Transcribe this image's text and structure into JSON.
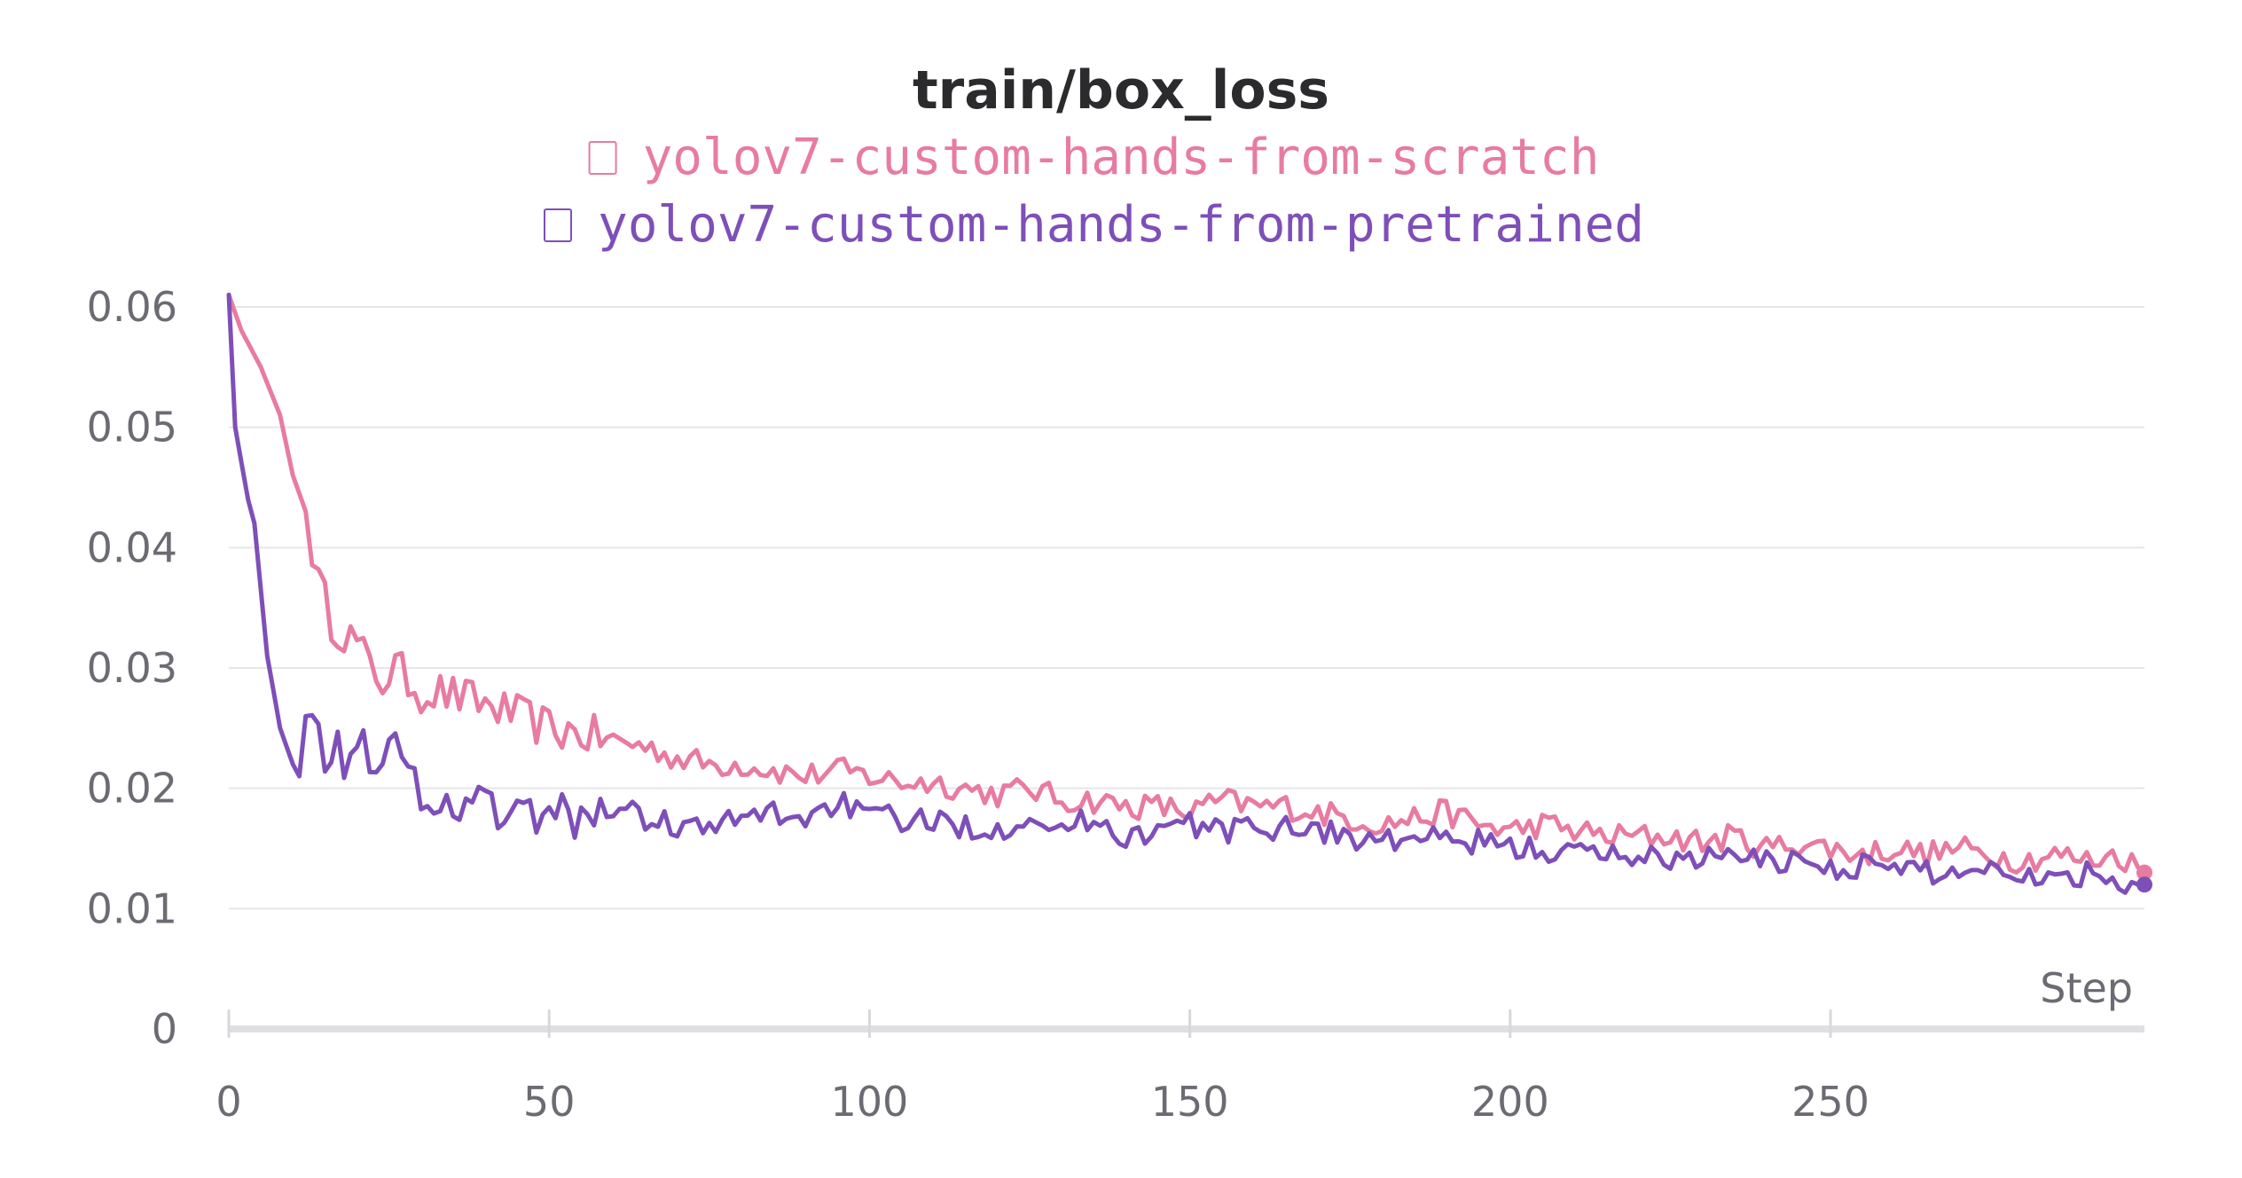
{
  "chart_data": {
    "type": "line",
    "title": "train/box_loss",
    "xlabel": "Step",
    "ylabel": "",
    "xlim": [
      0,
      299
    ],
    "ylim": [
      0,
      0.06
    ],
    "x_ticks": [
      "0",
      "50",
      "100",
      "150",
      "200",
      "250"
    ],
    "y_ticks": [
      "0",
      "0.01",
      "0.02",
      "0.03",
      "0.04",
      "0.05",
      "0.06"
    ],
    "grid": true,
    "legend": "top",
    "series": [
      {
        "name": "yolov7-custom-hands-from-scratch",
        "color": "#e87ba1",
        "x": [
          0,
          2,
          5,
          8,
          10,
          12,
          14,
          16,
          18,
          20,
          22,
          24,
          26,
          28,
          30,
          33,
          36,
          40,
          45,
          50,
          55,
          60,
          65,
          70,
          75,
          80,
          85,
          90,
          95,
          100,
          105,
          110,
          115,
          120,
          125,
          130,
          135,
          140,
          145,
          150,
          155,
          160,
          165,
          170,
          175,
          180,
          185,
          190,
          195,
          200,
          205,
          210,
          215,
          220,
          225,
          230,
          235,
          240,
          245,
          250,
          255,
          260,
          265,
          270,
          275,
          280,
          285,
          290,
          295,
          299
        ],
        "y": [
          0.061,
          0.058,
          0.055,
          0.051,
          0.046,
          0.043,
          0.037,
          0.034,
          0.033,
          0.032,
          0.03,
          0.029,
          0.03,
          0.029,
          0.028,
          0.028,
          0.0275,
          0.027,
          0.026,
          0.025,
          0.0245,
          0.024,
          0.0235,
          0.0225,
          0.022,
          0.022,
          0.0215,
          0.021,
          0.0215,
          0.021,
          0.0205,
          0.0205,
          0.02,
          0.0195,
          0.02,
          0.019,
          0.019,
          0.0185,
          0.0185,
          0.018,
          0.019,
          0.0185,
          0.0185,
          0.018,
          0.0175,
          0.017,
          0.0175,
          0.018,
          0.017,
          0.0165,
          0.017,
          0.0165,
          0.016,
          0.016,
          0.016,
          0.0155,
          0.016,
          0.015,
          0.0155,
          0.015,
          0.0145,
          0.015,
          0.0145,
          0.015,
          0.0145,
          0.014,
          0.0145,
          0.014,
          0.0145,
          0.013
        ]
      },
      {
        "name": "yolov7-custom-hands-from-pretrained",
        "color": "#7e4fb8",
        "x": [
          0,
          1,
          3,
          4,
          6,
          8,
          10,
          11,
          12,
          13,
          14,
          15,
          16,
          17,
          18,
          20,
          22,
          24,
          26,
          28,
          30,
          33,
          35,
          37,
          40,
          45,
          50,
          55,
          60,
          65,
          70,
          75,
          80,
          85,
          90,
          95,
          100,
          105,
          110,
          115,
          120,
          125,
          130,
          135,
          140,
          145,
          150,
          155,
          160,
          165,
          170,
          175,
          180,
          185,
          190,
          195,
          200,
          205,
          210,
          215,
          220,
          225,
          230,
          235,
          240,
          245,
          250,
          255,
          260,
          265,
          270,
          275,
          280,
          285,
          290,
          295,
          299
        ],
        "y": [
          0.061,
          0.05,
          0.044,
          0.042,
          0.031,
          0.025,
          0.022,
          0.021,
          0.026,
          0.0275,
          0.027,
          0.023,
          0.0225,
          0.023,
          0.022,
          0.025,
          0.023,
          0.021,
          0.024,
          0.021,
          0.02,
          0.019,
          0.0175,
          0.0195,
          0.019,
          0.0175,
          0.018,
          0.0175,
          0.0185,
          0.0175,
          0.017,
          0.0165,
          0.0175,
          0.018,
          0.0175,
          0.019,
          0.0175,
          0.0175,
          0.017,
          0.017,
          0.0165,
          0.018,
          0.0165,
          0.0175,
          0.016,
          0.0165,
          0.017,
          0.0165,
          0.0165,
          0.017,
          0.0165,
          0.016,
          0.0155,
          0.016,
          0.0155,
          0.0155,
          0.015,
          0.015,
          0.0145,
          0.0145,
          0.0145,
          0.014,
          0.0145,
          0.014,
          0.014,
          0.014,
          0.0135,
          0.0135,
          0.0135,
          0.013,
          0.013,
          0.0135,
          0.013,
          0.0125,
          0.013,
          0.0125,
          0.012
        ]
      }
    ]
  }
}
